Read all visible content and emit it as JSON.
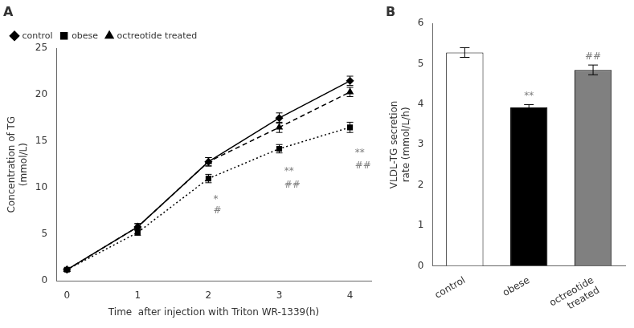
{
  "chart_data": [
    {
      "type": "line",
      "title": "A",
      "x_label": "Time  after injection with Triton WR-1339(h)",
      "y_label": "Concentration of TG\n(mmol/L)",
      "xlim": [
        -0.15,
        4.3
      ],
      "ylim": [
        0,
        25
      ],
      "xticks": [
        0,
        1,
        2,
        3,
        4
      ],
      "yticks": [
        0,
        5,
        10,
        15,
        20,
        25
      ],
      "grid": false,
      "legend": "upper left",
      "x": [
        0,
        1,
        2,
        3,
        4
      ],
      "series": [
        {
          "name": "control",
          "color": "#000000",
          "marker": "diamond",
          "line_style": "solid",
          "values": [
            1.2,
            5.8,
            12.8,
            17.5,
            21.5
          ],
          "errors": [
            0.15,
            0.35,
            0.45,
            0.55,
            0.5
          ]
        },
        {
          "name": "obese",
          "color": "#000000",
          "marker": "square",
          "line_style": "dotted",
          "values": [
            1.2,
            5.2,
            11.0,
            14.2,
            16.5
          ],
          "errors": [
            0.15,
            0.3,
            0.45,
            0.45,
            0.55
          ]
        },
        {
          "name": "octreotide treated",
          "color": "#000000",
          "marker": "triangle",
          "line_style": "dashed",
          "values": [
            1.2,
            5.8,
            12.8,
            16.5,
            20.3
          ],
          "errors": [
            0.15,
            0.35,
            0.45,
            0.55,
            0.5
          ]
        }
      ],
      "annotations": [
        {
          "text": "*",
          "x": 2.07,
          "y": 8.2
        },
        {
          "text": "#",
          "x": 2.07,
          "y": 7.0
        },
        {
          "text": "**",
          "x": 3.07,
          "y": 11.2
        },
        {
          "text": "##",
          "x": 3.07,
          "y": 9.8
        },
        {
          "text": "**",
          "x": 4.07,
          "y": 13.2
        },
        {
          "text": "##",
          "x": 4.07,
          "y": 11.8
        }
      ]
    },
    {
      "type": "bar",
      "title": "B",
      "y_label": "VLDL-TG secretion\nrate (mmol/L/h)",
      "ylim": [
        0,
        6
      ],
      "yticks": [
        0,
        1,
        2,
        3,
        4,
        5,
        6
      ],
      "grid": false,
      "categories": [
        "control",
        "obese",
        "octreotide\ntreated"
      ],
      "values": [
        5.28,
        3.92,
        4.85
      ],
      "errors": [
        0.12,
        0.07,
        0.12
      ],
      "colors": [
        "#ffffff",
        "#000000",
        "#808080"
      ],
      "annotations": [
        {
          "text": "**",
          "x": "obese",
          "y": 4.08
        },
        {
          "text": "##",
          "x": "octreotide\ntreated",
          "y": 5.06
        }
      ]
    }
  ]
}
